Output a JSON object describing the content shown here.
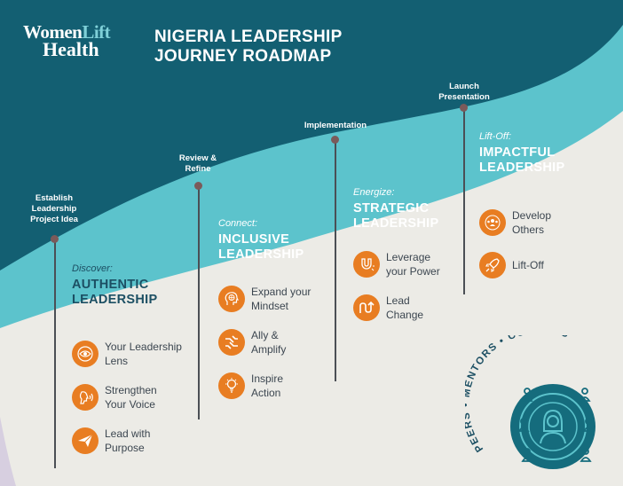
{
  "logo": {
    "line1_a": "Women",
    "line1_b": "Lift",
    "line2": "Health"
  },
  "title": {
    "line1": "NIGERIA LEADERSHIP",
    "line2": "JOURNEY ROADMAP"
  },
  "milestones": [
    {
      "lines": [
        "Establish",
        "Leadership",
        "Project Idea"
      ]
    },
    {
      "lines": [
        "Review &",
        "Refine"
      ]
    },
    {
      "lines": [
        "Implementation"
      ]
    },
    {
      "lines": [
        "Launch",
        "Presentation"
      ]
    }
  ],
  "stages": [
    {
      "kicker": "Discover:",
      "title_lines": [
        "AUTHENTIC",
        "LEADERSHIP"
      ],
      "items": [
        {
          "icon": "eye-icon",
          "lines": [
            "Your Leadership",
            "Lens"
          ]
        },
        {
          "icon": "voice-icon",
          "lines": [
            "Strengthen",
            "Your Voice"
          ]
        },
        {
          "icon": "paper-plane-icon",
          "lines": [
            "Lead with",
            "Purpose"
          ]
        }
      ]
    },
    {
      "kicker": "Connect:",
      "title_lines": [
        "INCLUSIVE",
        "LEADERSHIP"
      ],
      "items": [
        {
          "icon": "head-globe-icon",
          "lines": [
            "Expand your",
            "Mindset"
          ]
        },
        {
          "icon": "hands-icon",
          "lines": [
            "Ally &",
            "Amplify"
          ]
        },
        {
          "icon": "lightbulb-icon",
          "lines": [
            "Inspire",
            "Action"
          ]
        }
      ]
    },
    {
      "kicker": "Energize:",
      "title_lines": [
        "STRATEGIC",
        "LEADERSHIP"
      ],
      "items": [
        {
          "icon": "magnet-icon",
          "lines": [
            "Leverage",
            "your Power"
          ]
        },
        {
          "icon": "change-arrow-icon",
          "lines": [
            "Lead",
            "Change"
          ]
        }
      ]
    },
    {
      "kicker": "Lift-Off:",
      "title_lines": [
        "IMPACTFUL",
        "LEADERSHIP"
      ],
      "items": [
        {
          "icon": "team-icon",
          "lines": [
            "Develop",
            "Others"
          ]
        },
        {
          "icon": "rocket-icon",
          "lines": [
            "Lift-Off"
          ]
        }
      ]
    }
  ],
  "network": {
    "label": "PEERS • MENTORS • COACHES"
  },
  "colors": {
    "dark_teal": "#135f72",
    "light_teal": "#5cc3cc",
    "beige": "#ecebe6",
    "orange": "#e87d22",
    "navy": "#1c4f63",
    "circle_teal": "#156c7d"
  }
}
